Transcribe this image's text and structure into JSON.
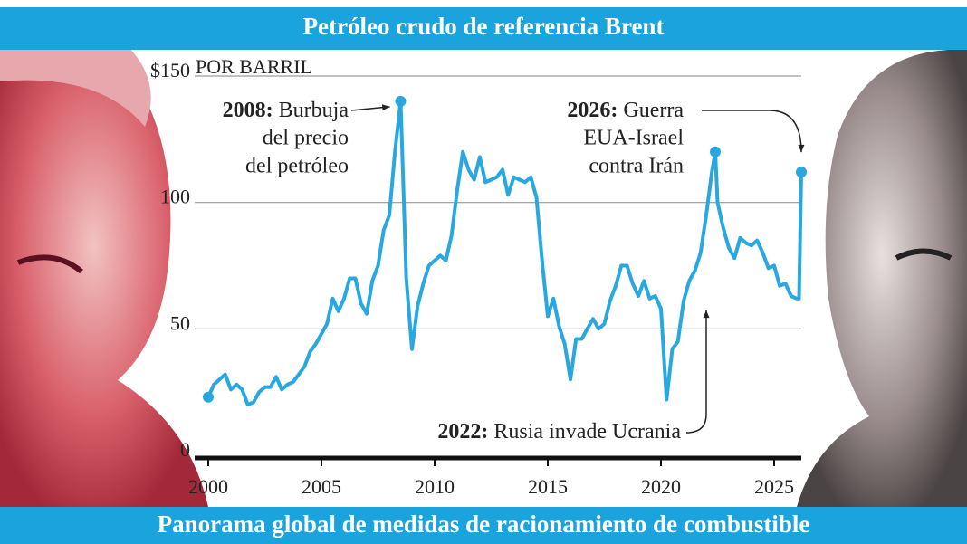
{
  "chart_data": {
    "type": "line",
    "title": "Petróleo crudo de referencia Brent",
    "subtitle": "Panorama global de medidas de racionamiento de combustible",
    "y_label": "POR BARRIL",
    "xlim": [
      1999.4,
      2026.2
    ],
    "ylim": [
      0,
      150
    ],
    "xticks": [
      2000,
      2005,
      2010,
      2015,
      2020,
      2025
    ],
    "yticks": [
      0,
      50,
      100,
      {
        "value": 150,
        "label": "$150"
      }
    ],
    "grid": true,
    "series": [
      {
        "color": "#29a8df",
        "x": [
          2000,
          2000.25,
          2000.5,
          2000.75,
          2001,
          2001.25,
          2001.5,
          2001.75,
          2002,
          2002.25,
          2002.5,
          2002.75,
          2003,
          2003.25,
          2003.5,
          2003.75,
          2004,
          2004.25,
          2004.5,
          2004.75,
          2005,
          2005.25,
          2005.5,
          2005.75,
          2006,
          2006.25,
          2006.5,
          2006.75,
          2007,
          2007.25,
          2007.5,
          2007.75,
          2008,
          2008.25,
          2008.5,
          2008.75,
          2009,
          2009.25,
          2009.5,
          2009.75,
          2010,
          2010.25,
          2010.5,
          2010.75,
          2011,
          2011.25,
          2011.5,
          2011.75,
          2012,
          2012.25,
          2012.5,
          2012.75,
          2013,
          2013.25,
          2013.5,
          2013.75,
          2014,
          2014.25,
          2014.5,
          2014.75,
          2015,
          2015.25,
          2015.5,
          2015.75,
          2016,
          2016.25,
          2016.5,
          2016.75,
          2017,
          2017.25,
          2017.5,
          2017.75,
          2018,
          2018.25,
          2018.5,
          2018.75,
          2019,
          2019.25,
          2019.5,
          2019.75,
          2020,
          2020.25,
          2020.5,
          2020.75,
          2021,
          2021.25,
          2021.5,
          2021.75,
          2022,
          2022.25,
          2022.4,
          2022.5,
          2022.75,
          2023,
          2023.25,
          2023.5,
          2023.75,
          2024,
          2024.25,
          2024.5,
          2024.75,
          2025,
          2025.25,
          2025.5,
          2025.75,
          2026,
          2026.1,
          2026.2
        ],
        "values": [
          23,
          28,
          30,
          32,
          26,
          28,
          26,
          20,
          21,
          25,
          27,
          27,
          31,
          26,
          28,
          29,
          32,
          35,
          41,
          44,
          48,
          52,
          62,
          57,
          62,
          70,
          70,
          60,
          56,
          69,
          75,
          89,
          95,
          120,
          140,
          70,
          42,
          59,
          68,
          75,
          77,
          79,
          77,
          87,
          105,
          120,
          113,
          109,
          118,
          108,
          109,
          110,
          113,
          103,
          110,
          109,
          108,
          110,
          102,
          77,
          55,
          62,
          51,
          44,
          30,
          46,
          46,
          50,
          54,
          50,
          52,
          61,
          67,
          75,
          75,
          68,
          63,
          69,
          62,
          63,
          58,
          22,
          42,
          45,
          61,
          69,
          73,
          80,
          95,
          112,
          120,
          100,
          90,
          82,
          78,
          86,
          84,
          83,
          85,
          80,
          74,
          75,
          67,
          68,
          63,
          62,
          62,
          112
        ]
      }
    ],
    "annotations": [
      {
        "label": "2008:",
        "lines": [
          "Burbuja",
          "del precio",
          "del petróleo"
        ],
        "x": 2008.5,
        "y": 140
      },
      {
        "label": "2026:",
        "lines": [
          "Guerra",
          "EUA-Israel",
          "contra Irán"
        ],
        "x": 2026.2,
        "y": 112
      },
      {
        "label": "2022:",
        "lines": [
          "Rusia invade Ucrania"
        ],
        "x": 2022.4,
        "y": 120
      }
    ]
  }
}
